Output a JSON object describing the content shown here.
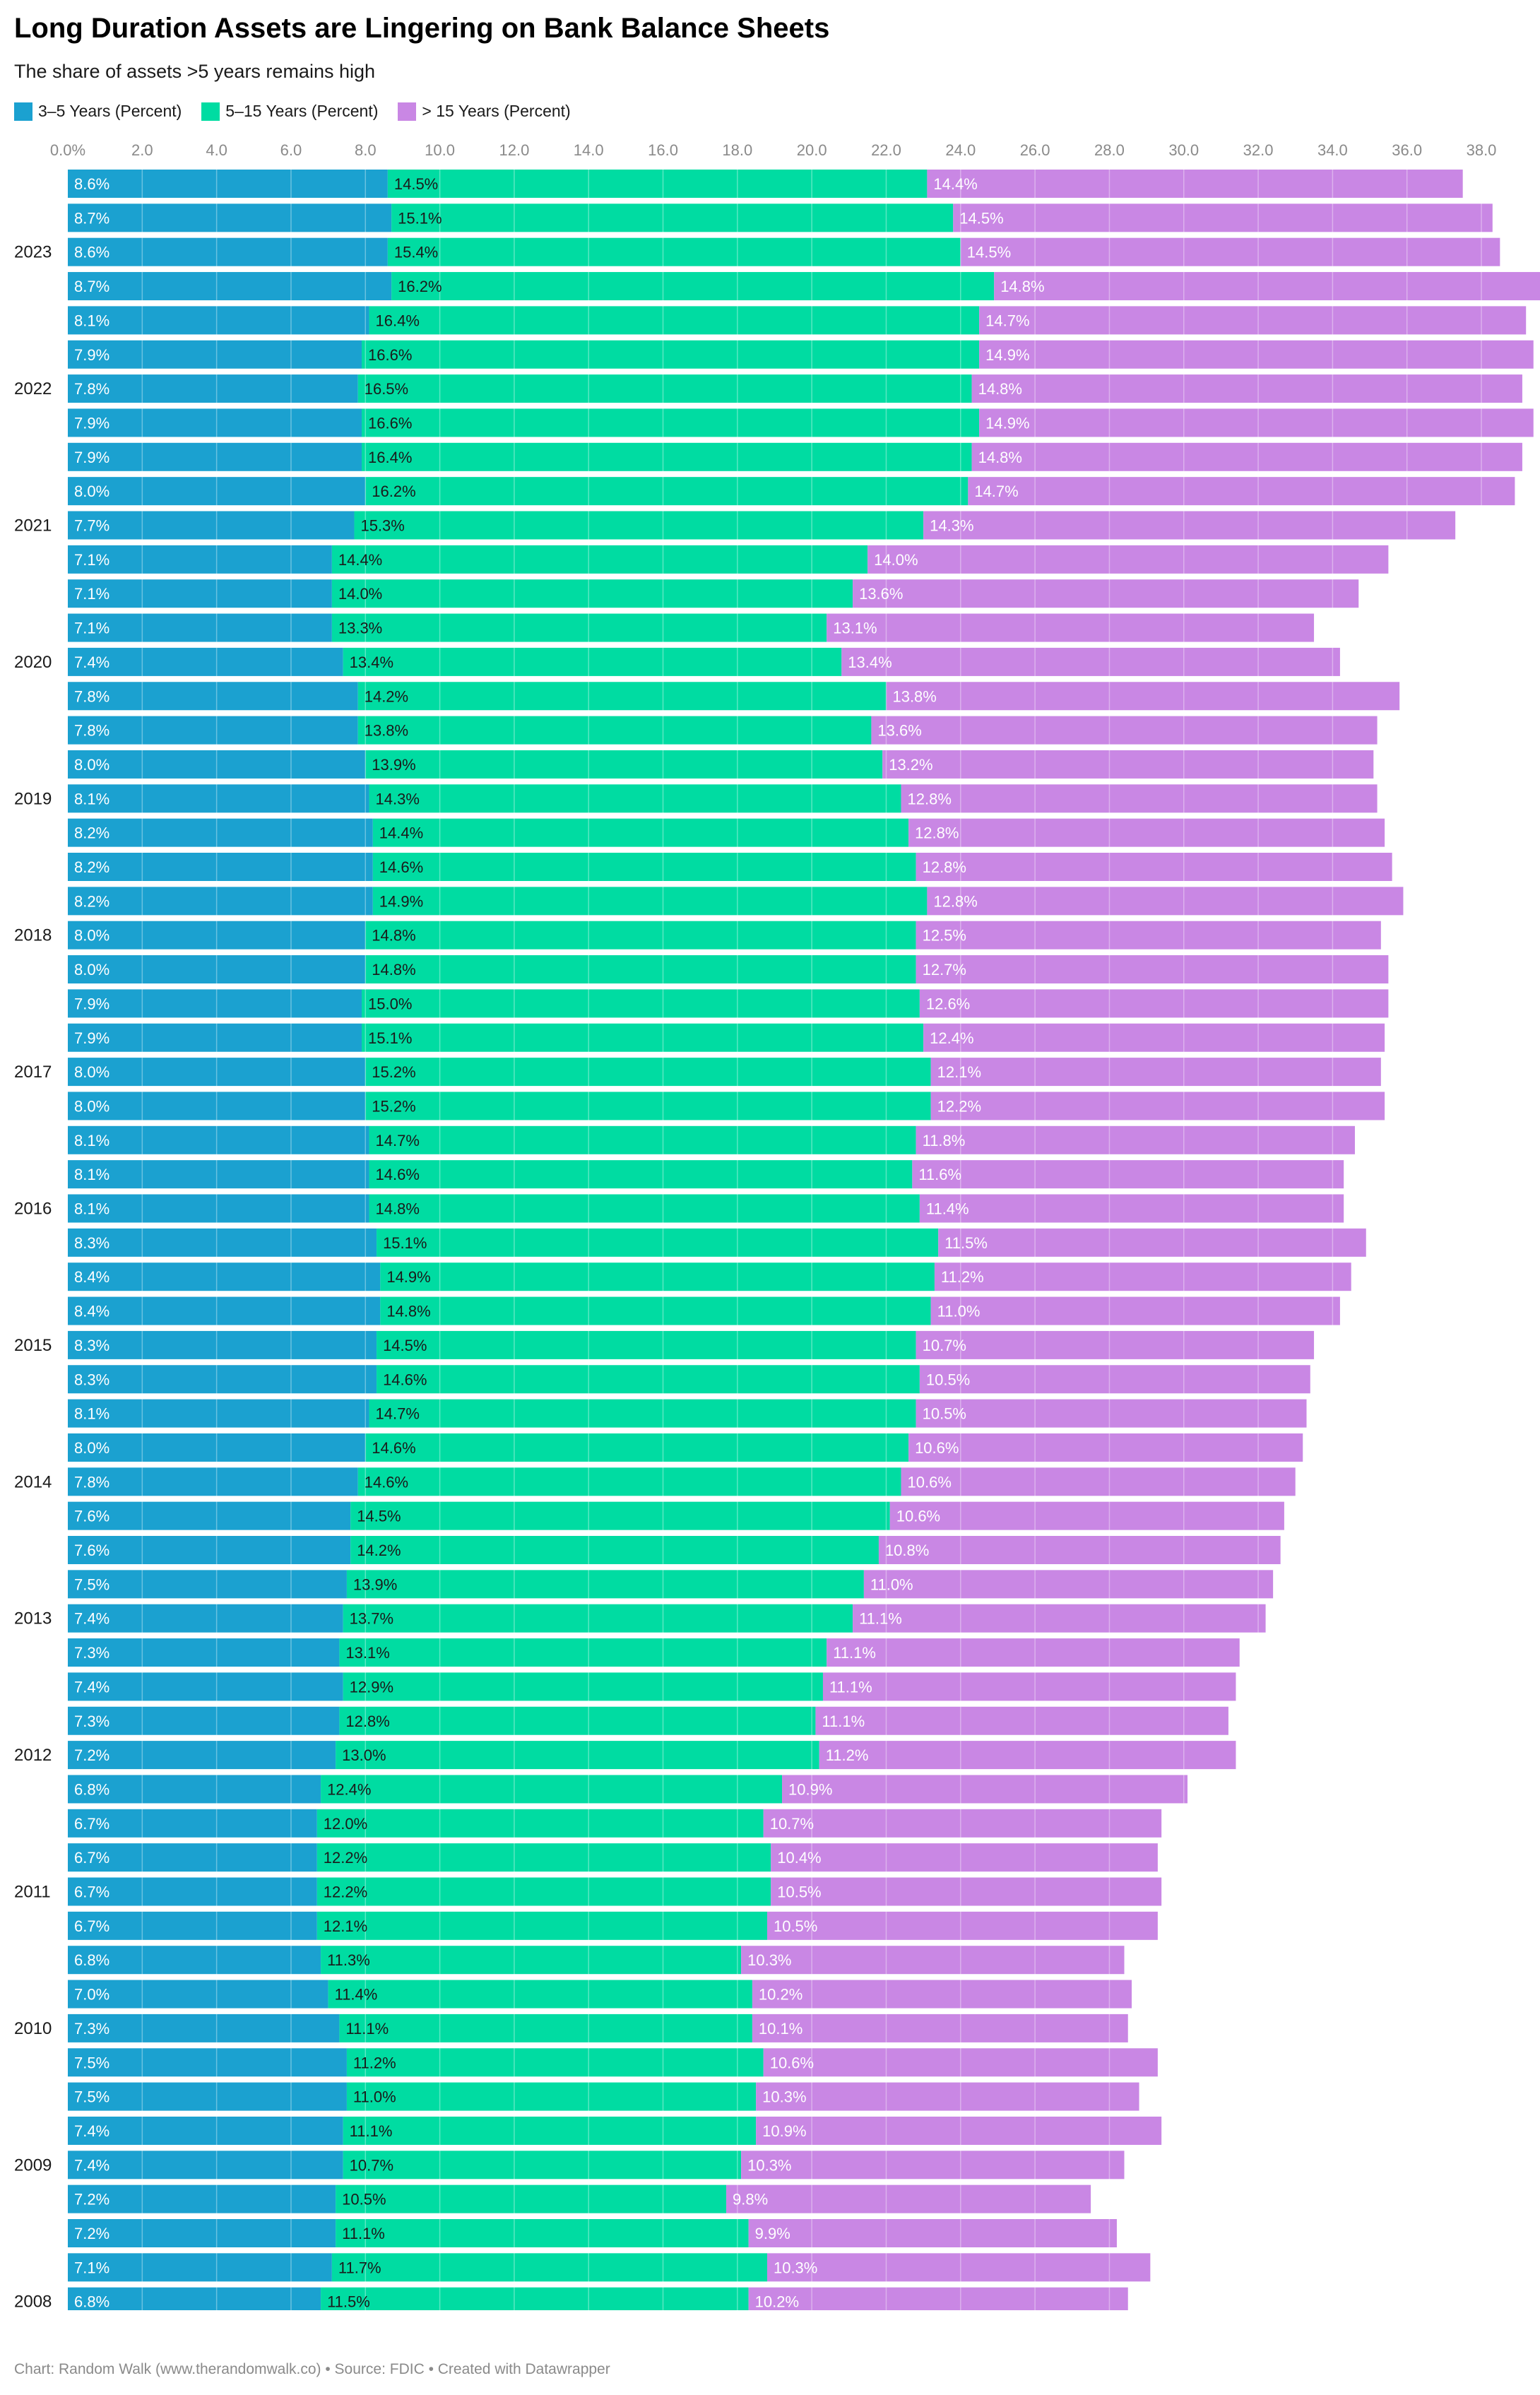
{
  "header": {
    "title": "Long Duration Assets are Lingering on Bank Balance Sheets",
    "subtitle": "The share of assets >5 years remains high"
  },
  "legend": [
    {
      "label": "3–5 Years (Percent)",
      "color": "#1ba1d0"
    },
    {
      "label": "5–15 Years (Percent)",
      "color": "#00dca2"
    },
    {
      "label": "> 15 Years (Percent)",
      "color": "#c987e4"
    }
  ],
  "footer": {
    "text": "Chart: Random Walk (www.therandomwalk.co) • Source: FDIC • Created with Datawrapper"
  },
  "chart_data": {
    "type": "bar",
    "orientation": "horizontal",
    "stacked": true,
    "xlim": [
      0,
      39.5
    ],
    "x_ticks": [
      "0.0%",
      "2.0",
      "4.0",
      "6.0",
      "8.0",
      "10.0",
      "12.0",
      "14.0",
      "16.0",
      "18.0",
      "20.0",
      "22.0",
      "24.0",
      "26.0",
      "28.0",
      "30.0",
      "32.0",
      "34.0",
      "36.0",
      "38.0"
    ],
    "x_tick_values": [
      0,
      2,
      4,
      6,
      8,
      10,
      12,
      14,
      16,
      18,
      20,
      22,
      24,
      26,
      28,
      30,
      32,
      34,
      36,
      38
    ],
    "row_labels": [
      "",
      "",
      "2023",
      "",
      "",
      "",
      "2022",
      "",
      "",
      "",
      "2021",
      "",
      "",
      "",
      "2020",
      "",
      "",
      "",
      "2019",
      "",
      "",
      "",
      "2018",
      "",
      "",
      "",
      "2017",
      "",
      "",
      "",
      "2016",
      "",
      "",
      "",
      "2015",
      "",
      "",
      "",
      "2014",
      "",
      "",
      "",
      "2013",
      "",
      "",
      "",
      "2012",
      "",
      "",
      "",
      "2011",
      "",
      "",
      "",
      "2010",
      "",
      "",
      "",
      "2009",
      "",
      "",
      "",
      "2008"
    ],
    "series": [
      {
        "name": "3–5 Years (Percent)",
        "color": "#1ba1d0",
        "label_color": "#ffffff",
        "values": [
          8.6,
          8.7,
          8.6,
          8.7,
          8.1,
          7.9,
          7.8,
          7.9,
          7.9,
          8.0,
          7.7,
          7.1,
          7.1,
          7.1,
          7.4,
          7.8,
          7.8,
          8.0,
          8.1,
          8.2,
          8.2,
          8.2,
          8.0,
          8.0,
          7.9,
          7.9,
          8.0,
          8.0,
          8.1,
          8.1,
          8.1,
          8.3,
          8.4,
          8.4,
          8.3,
          8.3,
          8.1,
          8.0,
          7.8,
          7.6,
          7.6,
          7.5,
          7.4,
          7.3,
          7.4,
          7.3,
          7.2,
          6.8,
          6.7,
          6.7,
          6.7,
          6.7,
          6.8,
          7.0,
          7.3,
          7.5,
          7.5,
          7.4,
          7.4,
          7.2,
          7.2,
          7.1,
          6.8
        ]
      },
      {
        "name": "5–15 Years (Percent)",
        "color": "#00dca2",
        "label_color": "#1a1a1a",
        "values": [
          14.5,
          15.1,
          15.4,
          16.2,
          16.4,
          16.6,
          16.5,
          16.6,
          16.4,
          16.2,
          15.3,
          14.4,
          14.0,
          13.3,
          13.4,
          14.2,
          13.8,
          13.9,
          14.3,
          14.4,
          14.6,
          14.9,
          14.8,
          14.8,
          15.0,
          15.1,
          15.2,
          15.2,
          14.7,
          14.6,
          14.8,
          15.1,
          14.9,
          14.8,
          14.5,
          14.6,
          14.7,
          14.6,
          14.6,
          14.5,
          14.2,
          13.9,
          13.7,
          13.1,
          12.9,
          12.8,
          13.0,
          12.4,
          12.0,
          12.2,
          12.2,
          12.1,
          11.3,
          11.4,
          11.1,
          11.2,
          11.0,
          11.1,
          10.7,
          10.5,
          11.1,
          11.7,
          11.5
        ]
      },
      {
        "name": "> 15 Years (Percent)",
        "color": "#c987e4",
        "label_color": "#ffffff",
        "values": [
          14.4,
          14.5,
          14.5,
          14.8,
          14.7,
          14.9,
          14.8,
          14.9,
          14.8,
          14.7,
          14.3,
          14.0,
          13.6,
          13.1,
          13.4,
          13.8,
          13.6,
          13.2,
          12.8,
          12.8,
          12.8,
          12.8,
          12.5,
          12.7,
          12.6,
          12.4,
          12.1,
          12.2,
          11.8,
          11.6,
          11.4,
          11.5,
          11.2,
          11.0,
          10.7,
          10.5,
          10.5,
          10.6,
          10.6,
          10.6,
          10.8,
          11.0,
          11.1,
          11.1,
          11.1,
          11.1,
          11.2,
          10.9,
          10.7,
          10.4,
          10.5,
          10.5,
          10.3,
          10.2,
          10.1,
          10.6,
          10.3,
          10.9,
          10.3,
          9.8,
          9.9,
          10.3,
          10.2
        ]
      }
    ],
    "value_suffix": "%",
    "grid": true,
    "legend_position": "top-left"
  }
}
